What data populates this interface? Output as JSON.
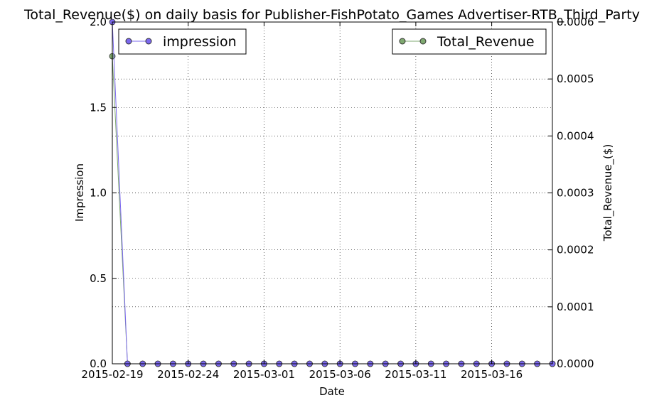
{
  "chart_data": {
    "type": "line",
    "title": "Total_Revenue($) on daily basis for Publisher-FishPotato_Games Advertiser-RTB_Third_Party",
    "xlabel": "Date",
    "ylabel": "Impression",
    "ylabel_right": "Total_Revenue_($)",
    "x": [
      "2015-02-19",
      "2015-02-20",
      "2015-02-21",
      "2015-02-22",
      "2015-02-23",
      "2015-02-24",
      "2015-02-25",
      "2015-02-26",
      "2015-02-27",
      "2015-02-28",
      "2015-03-01",
      "2015-03-02",
      "2015-03-03",
      "2015-03-04",
      "2015-03-05",
      "2015-03-06",
      "2015-03-07",
      "2015-03-08",
      "2015-03-09",
      "2015-03-10",
      "2015-03-11",
      "2015-03-12",
      "2015-03-13",
      "2015-03-14",
      "2015-03-15",
      "2015-03-16",
      "2015-03-17",
      "2015-03-18",
      "2015-03-19",
      "2015-03-20"
    ],
    "xticks": [
      "2015-02-19",
      "2015-02-24",
      "2015-03-01",
      "2015-03-06",
      "2015-03-11",
      "2015-03-16"
    ],
    "xlim": [
      "2015-02-19",
      "2015-03-20"
    ],
    "ylim_left": [
      0,
      2.0
    ],
    "ylim_right": [
      0,
      0.0006
    ],
    "yticks_left": [
      "0.0",
      "0.5",
      "1.0",
      "1.5",
      "2.0"
    ],
    "yticks_right": [
      "0.0000",
      "0.0001",
      "0.0002",
      "0.0003",
      "0.0004",
      "0.0005",
      "0.0006"
    ],
    "grid": true,
    "series": [
      {
        "name": "impression",
        "axis": "left",
        "color": "#7b68ee",
        "legend_position": "upper-left",
        "values": [
          2,
          0,
          0,
          0,
          0,
          0,
          0,
          0,
          0,
          0,
          0,
          0,
          0,
          0,
          0,
          0,
          0,
          0,
          0,
          0,
          0,
          0,
          0,
          0,
          0,
          0,
          0,
          0,
          0,
          0
        ]
      },
      {
        "name": "Total_Revenue",
        "axis": "right",
        "color": "#7fa970",
        "legend_position": "upper-right",
        "values": [
          0.00054,
          0,
          0,
          0,
          0,
          0,
          0,
          0,
          0,
          0,
          0,
          0,
          0,
          0,
          0,
          0,
          0,
          0,
          0,
          0,
          0,
          0,
          0,
          0,
          0,
          0,
          0,
          0,
          0,
          0
        ]
      }
    ]
  }
}
